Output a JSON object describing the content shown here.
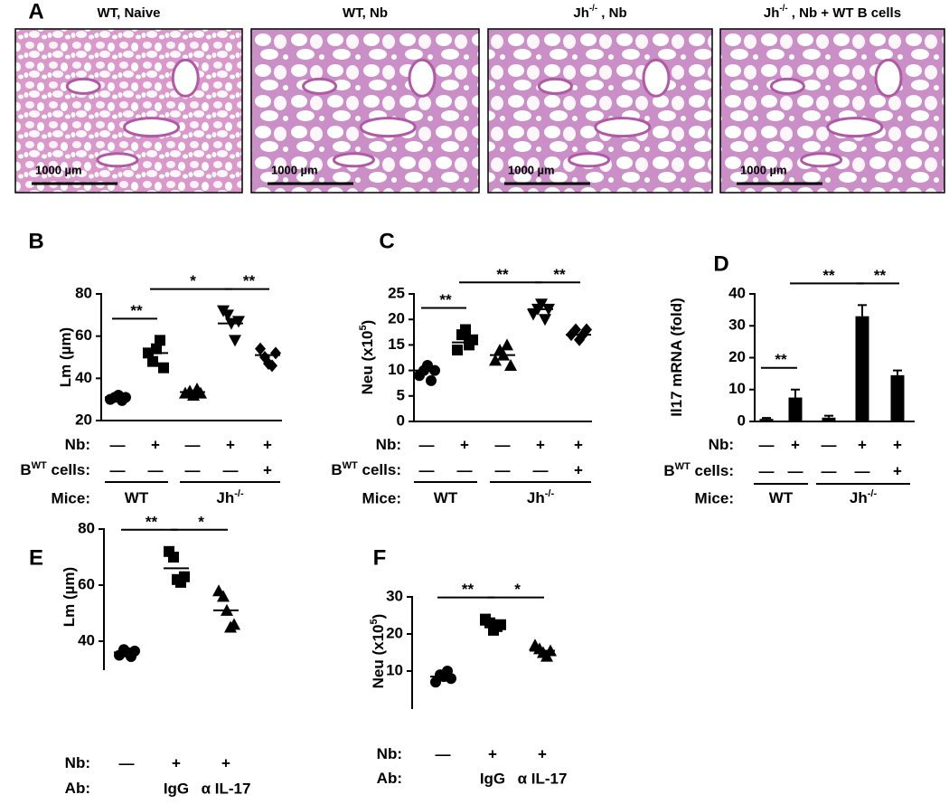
{
  "panel_a": {
    "label": "A",
    "images": [
      {
        "title": [
          "WT, Naive"
        ],
        "scale_bar": "1000 µm"
      },
      {
        "title": [
          "WT, Nb"
        ],
        "scale_bar": "1000 µm"
      },
      {
        "title": [
          "Jh",
          "-/-",
          " , Nb"
        ],
        "scale_bar": "1000 µm"
      },
      {
        "title": [
          "Jh",
          "-/-",
          " , Nb + WT B cells"
        ],
        "scale_bar": "1000 µm"
      }
    ]
  },
  "chart_data": [
    {
      "panel": "B",
      "type": "dot",
      "y_label": [
        "Lm (µm)"
      ],
      "ylim": [
        20,
        80
      ],
      "yticks": [
        20,
        40,
        60,
        80
      ],
      "color": "#000000",
      "x_axis_line": true,
      "groups": [
        {
          "marker": "circle",
          "values": [
            30,
            31,
            32,
            29.5,
            31
          ],
          "mean": 31
        },
        {
          "marker": "square",
          "values": [
            52,
            48,
            54,
            58,
            45
          ],
          "mean": 52
        },
        {
          "marker": "triangle",
          "values": [
            33,
            34,
            32,
            35,
            33
          ],
          "mean": 33.5
        },
        {
          "marker": "triangle-down",
          "values": [
            72,
            70,
            66,
            58,
            67
          ],
          "mean": 66
        },
        {
          "marker": "diamond",
          "values": [
            54,
            50,
            47,
            46,
            52
          ],
          "mean": 51
        }
      ],
      "conditions": [
        {
          "label": [
            "Nb:"
          ],
          "values": [
            "—",
            "+",
            "—",
            "+",
            "+"
          ]
        },
        {
          "label": [
            "B",
            "WT",
            " cells:"
          ],
          "values": [
            "—",
            "—",
            "—",
            "—",
            "+"
          ]
        }
      ],
      "mice": {
        "label": "Mice:",
        "groups": [
          {
            "text": [
              "WT"
            ],
            "n": 2
          },
          {
            "text": [
              "Jh",
              "-/-"
            ],
            "n": 3
          }
        ]
      },
      "brackets": [
        {
          "from": 0,
          "to": 1,
          "label": "**"
        },
        {
          "from": 1,
          "to": 3,
          "label": "*"
        },
        {
          "from": 3,
          "to": 4,
          "label": "**"
        }
      ]
    },
    {
      "panel": "C",
      "type": "dot",
      "y_label": [
        "Neu (x10",
        "5",
        ")"
      ],
      "ylim": [
        0,
        25
      ],
      "yticks": [
        0,
        5,
        10,
        15,
        20,
        25
      ],
      "color": "#000000",
      "x_axis_line": true,
      "groups": [
        {
          "marker": "circle",
          "values": [
            9,
            10,
            11,
            8,
            10
          ],
          "mean": 10
        },
        {
          "marker": "square",
          "values": [
            14,
            17,
            18,
            15,
            16
          ],
          "mean": 15.5
        },
        {
          "marker": "triangle",
          "values": [
            12,
            14,
            13,
            15,
            11
          ],
          "mean": 13
        },
        {
          "marker": "triangle-down",
          "values": [
            21,
            22,
            23,
            20,
            22
          ],
          "mean": 22
        },
        {
          "marker": "diamond",
          "values": [
            17,
            18,
            16,
            17,
            18
          ],
          "mean": 17
        }
      ],
      "conditions": [
        {
          "label": [
            "Nb:"
          ],
          "values": [
            "—",
            "+",
            "—",
            "+",
            "+"
          ]
        },
        {
          "label": [
            "B",
            "WT",
            " cells:"
          ],
          "values": [
            "—",
            "—",
            "—",
            "—",
            "+"
          ]
        }
      ],
      "mice": {
        "label": "Mice:",
        "groups": [
          {
            "text": [
              "WT"
            ],
            "n": 2
          },
          {
            "text": [
              "Jh",
              "-/-"
            ],
            "n": 3
          }
        ]
      },
      "brackets": [
        {
          "from": 0,
          "to": 1,
          "label": "**"
        },
        {
          "from": 1,
          "to": 3,
          "label": "**"
        },
        {
          "from": 3,
          "to": 4,
          "label": "**"
        }
      ]
    },
    {
      "panel": "D",
      "type": "bar",
      "y_label": [
        "Il17 mRNA (fold)"
      ],
      "ylim": [
        0,
        40
      ],
      "yticks": [
        0,
        10,
        20,
        30,
        40
      ],
      "color": "#000000",
      "x_axis_line": true,
      "values": [
        0.8,
        7.5,
        1.2,
        33,
        14.5
      ],
      "errors": [
        0.3,
        2.5,
        0.6,
        3.5,
        1.5
      ],
      "conditions": [
        {
          "label": [
            "Nb:"
          ],
          "values": [
            "—",
            "+",
            "—",
            "+",
            "+"
          ]
        },
        {
          "label": [
            "B",
            "WT",
            " cells:"
          ],
          "values": [
            "—",
            "—",
            "—",
            "—",
            "+"
          ]
        }
      ],
      "mice": {
        "label": "Mice:",
        "groups": [
          {
            "text": [
              "WT"
            ],
            "n": 2
          },
          {
            "text": [
              "Jh",
              "-/-"
            ],
            "n": 3
          }
        ]
      },
      "brackets": [
        {
          "from": 0,
          "to": 1,
          "label": "**"
        },
        {
          "from": 1,
          "to": 3,
          "label": "**"
        },
        {
          "from": 3,
          "to": 4,
          "label": "**"
        }
      ]
    },
    {
      "panel": "E",
      "type": "dot",
      "y_label": [
        "Lm (µm)"
      ],
      "ylim": [
        30,
        80
      ],
      "yticks": [
        40,
        60,
        80
      ],
      "color": "#000000",
      "x_axis_line": false,
      "groups": [
        {
          "marker": "circle",
          "values": [
            35,
            37,
            36,
            34.5,
            36.5
          ],
          "mean": 36
        },
        {
          "marker": "square",
          "values": [
            72,
            70,
            62,
            61,
            63
          ],
          "mean": 66
        },
        {
          "marker": "triangle",
          "values": [
            58,
            56,
            51,
            45,
            46
          ],
          "mean": 51
        }
      ],
      "conditions": [
        {
          "label": [
            "Nb:"
          ],
          "values": [
            "—",
            "+",
            "+"
          ]
        },
        {
          "label": [
            "Ab:"
          ],
          "values": [
            null,
            "IgG",
            "α IL-17"
          ]
        }
      ],
      "brackets": [
        {
          "from": 0,
          "to": 1,
          "label": "**"
        },
        {
          "from": 1,
          "to": 2,
          "label": "*"
        }
      ]
    },
    {
      "panel": "F",
      "type": "dot",
      "y_label": [
        "Neu (x10",
        "5",
        ")"
      ],
      "ylim": [
        0,
        30
      ],
      "yticks": [
        10,
        20,
        30
      ],
      "color": "#000000",
      "x_axis_line": false,
      "groups": [
        {
          "marker": "circle",
          "values": [
            7,
            9,
            8.5,
            10,
            8
          ],
          "mean": 8.5
        },
        {
          "marker": "square",
          "values": [
            24,
            23,
            21,
            22,
            22.5
          ],
          "mean": 22.5
        },
        {
          "marker": "triangle",
          "values": [
            17,
            16,
            15,
            14,
            15.5
          ],
          "mean": 15.5
        }
      ],
      "conditions": [
        {
          "label": [
            "Nb:"
          ],
          "values": [
            "—",
            "+",
            "+"
          ]
        },
        {
          "label": [
            "Ab:"
          ],
          "values": [
            null,
            "IgG",
            "α IL-17"
          ]
        }
      ],
      "brackets": [
        {
          "from": 0,
          "to": 1,
          "label": "**"
        },
        {
          "from": 1,
          "to": 2,
          "label": "*"
        }
      ]
    }
  ]
}
